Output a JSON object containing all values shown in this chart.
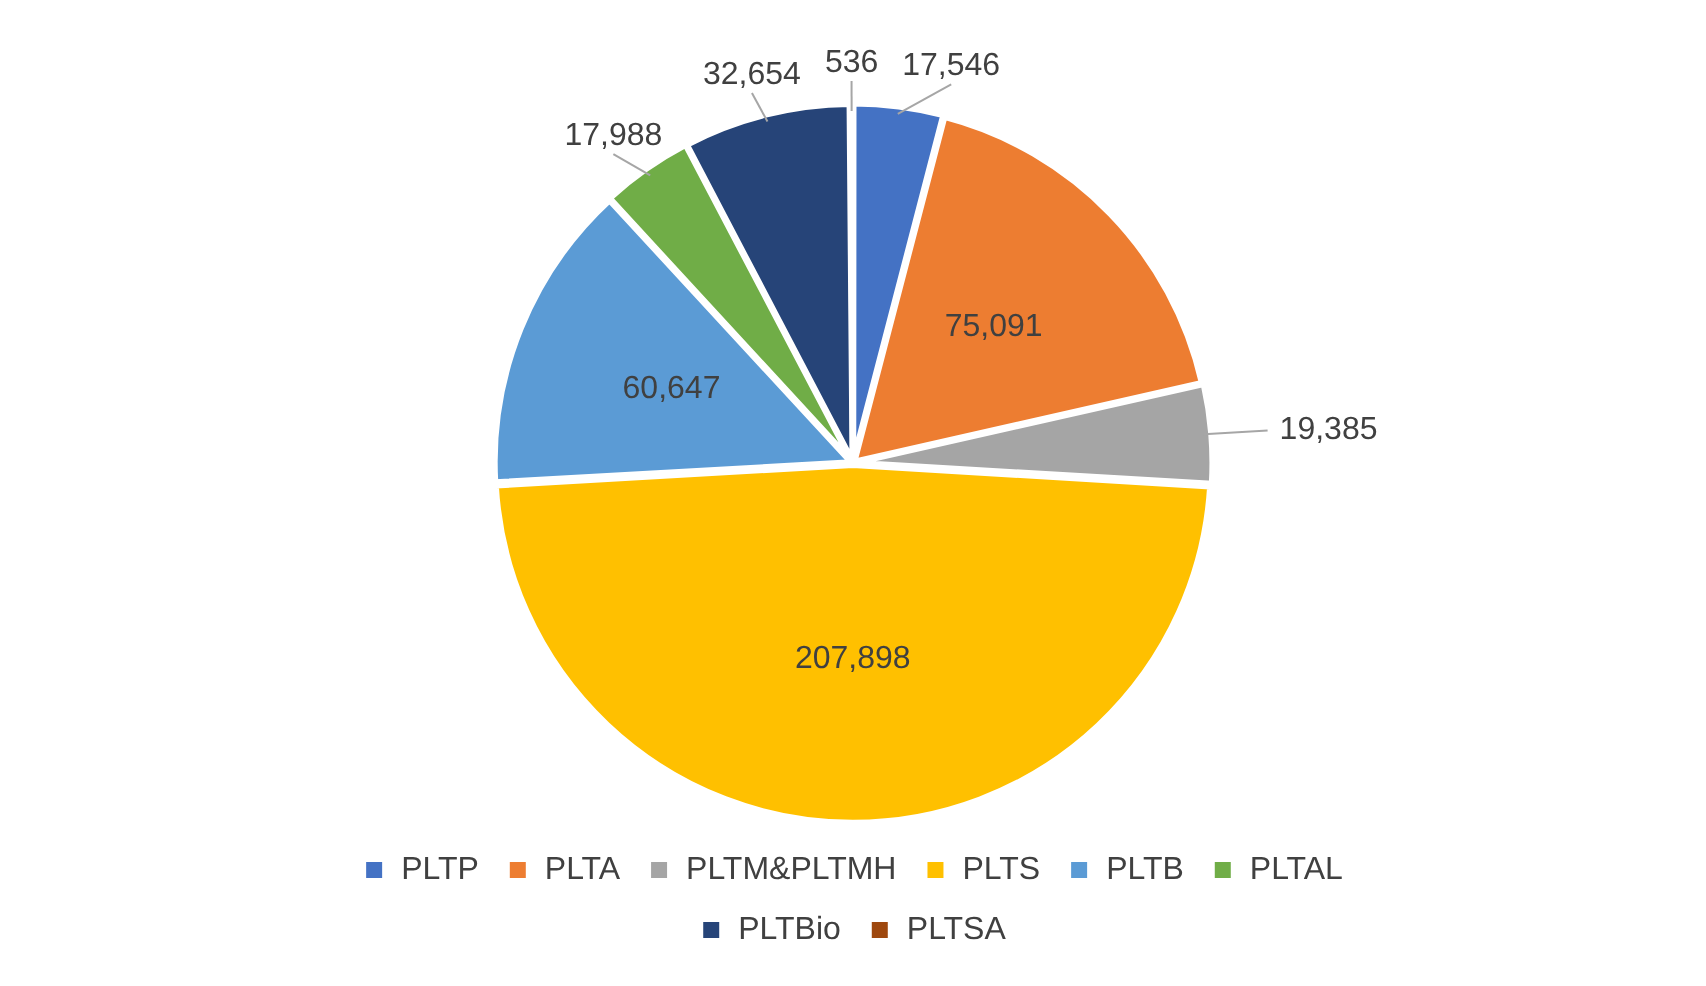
{
  "chart_data": {
    "type": "pie",
    "categories": [
      "PLTP",
      "PLTA",
      "PLTM&PLTMH",
      "PLTS",
      "PLTB",
      "PLTAL",
      "PLTBio",
      "PLTSA"
    ],
    "values": [
      17546,
      75091,
      19385,
      207898,
      60647,
      17988,
      32654,
      536
    ],
    "colors": [
      "#4472c4",
      "#ed7d31",
      "#a5a5a5",
      "#ffc000",
      "#5b9bd5",
      "#70ad47",
      "#264478",
      "#9e480e"
    ],
    "value_labels": [
      "17,546",
      "75,091",
      "19,385",
      "207,898",
      "60,647",
      "17,988",
      "32,654",
      "536"
    ],
    "legend": "bottom"
  }
}
